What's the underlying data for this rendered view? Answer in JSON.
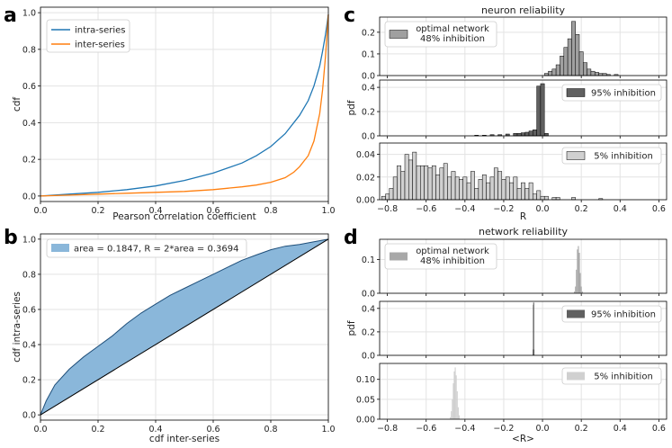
{
  "panels": {
    "a": {
      "letter": "a",
      "chart_data": {
        "type": "line",
        "xlabel": "Pearson correlation coefficient",
        "ylabel": "cdf",
        "xlim": [
          0,
          1
        ],
        "ylim": [
          -0.03,
          1.03
        ],
        "xticks": [
          "0.0",
          "0.2",
          "0.4",
          "0.6",
          "0.8",
          "1.0"
        ],
        "yticks": [
          "0.0",
          "0.2",
          "0.4",
          "0.6",
          "0.8",
          "1.0"
        ],
        "legend_position": "top-left",
        "series": [
          {
            "name": "intra-series",
            "color": "#1f77b4",
            "x": [
              0,
              0.1,
              0.2,
              0.3,
              0.4,
              0.5,
              0.6,
              0.7,
              0.75,
              0.8,
              0.85,
              0.9,
              0.93,
              0.95,
              0.97,
              0.98,
              0.99,
              1.0
            ],
            "y": [
              0,
              0.01,
              0.02,
              0.035,
              0.055,
              0.085,
              0.125,
              0.18,
              0.22,
              0.27,
              0.34,
              0.44,
              0.52,
              0.6,
              0.71,
              0.79,
              0.88,
              0.99
            ]
          },
          {
            "name": "inter-series",
            "color": "#ff7f0e",
            "x": [
              0,
              0.1,
              0.2,
              0.3,
              0.4,
              0.5,
              0.6,
              0.7,
              0.75,
              0.8,
              0.85,
              0.88,
              0.9,
              0.93,
              0.95,
              0.97,
              0.98,
              0.99,
              1.0
            ],
            "y": [
              0,
              0.005,
              0.01,
              0.015,
              0.02,
              0.025,
              0.035,
              0.05,
              0.06,
              0.075,
              0.1,
              0.13,
              0.16,
              0.22,
              0.3,
              0.45,
              0.58,
              0.76,
              0.99
            ]
          }
        ]
      }
    },
    "b": {
      "letter": "b",
      "chart_data": {
        "type": "area",
        "xlabel": "cdf inter-series",
        "ylabel": "cdf intra-series",
        "xlim": [
          0,
          1
        ],
        "ylim": [
          -0.03,
          1.03
        ],
        "xticks": [
          "0.0",
          "0.2",
          "0.4",
          "0.6",
          "0.8",
          "1.0"
        ],
        "yticks": [
          "0.0",
          "0.2",
          "0.4",
          "0.6",
          "0.8",
          "1.0"
        ],
        "legend": "area = 0.1847, R = 2*area = 0.3694",
        "legend_position": "top-left",
        "fill_color": "#8ab7da",
        "x": [
          0,
          0.02,
          0.05,
          0.1,
          0.15,
          0.2,
          0.25,
          0.3,
          0.35,
          0.4,
          0.45,
          0.5,
          0.55,
          0.6,
          0.65,
          0.7,
          0.75,
          0.8,
          0.85,
          0.9,
          0.95,
          1.0
        ],
        "y": [
          0,
          0.08,
          0.17,
          0.26,
          0.33,
          0.39,
          0.45,
          0.52,
          0.58,
          0.63,
          0.68,
          0.72,
          0.76,
          0.8,
          0.84,
          0.88,
          0.91,
          0.94,
          0.96,
          0.97,
          0.985,
          1.0
        ]
      }
    },
    "c": {
      "letter": "c",
      "chart_data": {
        "type": "bar",
        "title": "neuron reliability",
        "xlabel": "R",
        "ylabel": "pdf",
        "xlim": [
          -0.84,
          0.64
        ],
        "xticks": [
          "-0.8",
          "-0.6",
          "-0.4",
          "-0.2",
          "0.0",
          "0.2",
          "0.4",
          "0.6"
        ],
        "bin_width": 0.02,
        "subplots": [
          {
            "legend": [
              "optimal network",
              "48% inhibition"
            ],
            "color": "#a0a0a0",
            "ylim": [
              0,
              0.27
            ],
            "yticks": [
              "0.0",
              "0.1",
              "0.2"
            ],
            "bins": [
              0.02,
              0.04,
              0.06,
              0.08,
              0.1,
              0.12,
              0.14,
              0.16,
              0.18,
              0.2,
              0.22,
              0.24,
              0.26,
              0.28,
              0.3,
              0.32,
              0.34,
              0.38
            ],
            "values": [
              0.01,
              0.02,
              0.03,
              0.05,
              0.09,
              0.13,
              0.17,
              0.25,
              0.19,
              0.11,
              0.06,
              0.03,
              0.02,
              0.015,
              0.01,
              0.01,
              0.005,
              0.005
            ]
          },
          {
            "legend": [
              "95% inhibition"
            ],
            "color": "#606060",
            "ylim": [
              0,
              0.46
            ],
            "yticks": [
              "0.0",
              "0.2",
              "0.4"
            ],
            "bins": [
              -0.34,
              -0.3,
              -0.26,
              -0.22,
              -0.18,
              -0.14,
              -0.12,
              -0.1,
              -0.08,
              -0.06,
              -0.04,
              -0.02,
              0.0,
              0.02
            ],
            "values": [
              0.005,
              0.005,
              0.01,
              0.01,
              0.015,
              0.02,
              0.02,
              0.025,
              0.03,
              0.04,
              0.05,
              0.41,
              0.43,
              0.02
            ]
          },
          {
            "legend": [
              "5% inhibition"
            ],
            "color": "#d0d0d0",
            "ylim": [
              0,
              0.05
            ],
            "yticks": [
              "0.00",
              "0.02",
              "0.04"
            ],
            "bins": [
              -0.82,
              -0.8,
              -0.78,
              -0.76,
              -0.74,
              -0.72,
              -0.7,
              -0.68,
              -0.66,
              -0.64,
              -0.62,
              -0.6,
              -0.58,
              -0.56,
              -0.54,
              -0.52,
              -0.5,
              -0.48,
              -0.46,
              -0.44,
              -0.42,
              -0.4,
              -0.38,
              -0.36,
              -0.34,
              -0.32,
              -0.3,
              -0.28,
              -0.26,
              -0.24,
              -0.22,
              -0.2,
              -0.18,
              -0.16,
              -0.14,
              -0.12,
              -0.1,
              -0.08,
              -0.06,
              -0.04,
              -0.02,
              0.0,
              0.02,
              0.06,
              0.08,
              0.16,
              0.3
            ],
            "values": [
              0.003,
              0.005,
              0.01,
              0.02,
              0.03,
              0.025,
              0.04,
              0.035,
              0.042,
              0.03,
              0.03,
              0.03,
              0.028,
              0.03,
              0.022,
              0.028,
              0.032,
              0.02,
              0.025,
              0.02,
              0.018,
              0.02,
              0.015,
              0.025,
              0.01,
              0.018,
              0.022,
              0.015,
              0.02,
              0.028,
              0.025,
              0.018,
              0.02,
              0.015,
              0.02,
              0.01,
              0.015,
              0.01,
              0.015,
              0.005,
              0.008,
              0.003,
              0.003,
              0.002,
              0.002,
              0.002,
              0.001
            ]
          }
        ]
      }
    },
    "d": {
      "letter": "d",
      "chart_data": {
        "type": "bar",
        "title": "network reliability",
        "xlabel": "<R>",
        "ylabel": "pdf",
        "xlim": [
          -0.84,
          0.64
        ],
        "xticks": [
          "-0.8",
          "-0.6",
          "-0.4",
          "-0.2",
          "0.0",
          "0.2",
          "0.4",
          "0.6"
        ],
        "subplots": [
          {
            "legend": [
              "optimal network",
              "48% inhibition"
            ],
            "color": "#a8a8a8",
            "ylim": [
              0,
              0.16
            ],
            "yticks": [
              "0.0",
              "0.1"
            ],
            "x": [
              0.165,
              0.17,
              0.175,
              0.18,
              0.185,
              0.19,
              0.195,
              0.2,
              0.205
            ],
            "values": [
              0.005,
              0.02,
              0.07,
              0.13,
              0.14,
              0.12,
              0.06,
              0.02,
              0.005
            ]
          },
          {
            "legend": [
              "95% inhibition"
            ],
            "color": "#606060",
            "ylim": [
              0,
              0.46
            ],
            "yticks": [
              "0.0",
              "0.2",
              "0.4"
            ],
            "x": [
              -0.0485,
              -0.047,
              -0.0455,
              -0.044
            ],
            "values": [
              0.05,
              0.43,
              0.45,
              0.05
            ]
          },
          {
            "legend": [
              "5% inhibition"
            ],
            "color": "#d0d0d0",
            "ylim": [
              0,
              0.14
            ],
            "yticks": [
              "0.00",
              "0.05",
              "0.10"
            ],
            "x": [
              -0.475,
              -0.47,
              -0.465,
              -0.46,
              -0.455,
              -0.45,
              -0.445,
              -0.44,
              -0.435,
              -0.43
            ],
            "values": [
              0.005,
              0.02,
              0.05,
              0.09,
              0.12,
              0.13,
              0.11,
              0.07,
              0.03,
              0.01
            ]
          }
        ]
      }
    }
  }
}
